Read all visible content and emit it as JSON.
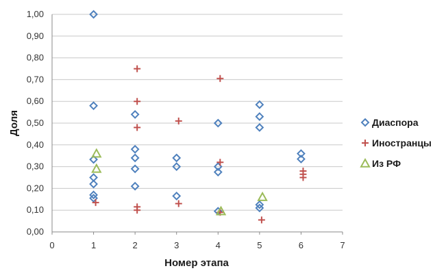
{
  "chart_data": {
    "type": "scatter",
    "title": "",
    "xlabel": "Номер этапа",
    "ylabel": "Доля",
    "xlim": [
      0,
      7
    ],
    "ylim": [
      0,
      1
    ],
    "grid": "horizontal",
    "legend_position": "right",
    "x_ticks": [
      "0",
      "1",
      "2",
      "3",
      "4",
      "5",
      "6",
      "7"
    ],
    "y_ticks": [
      "0,00",
      "0,10",
      "0,20",
      "0,30",
      "0,40",
      "0,50",
      "0,60",
      "0,70",
      "0,80",
      "0,90",
      "1,00"
    ],
    "series": [
      {
        "name": "Диаспора",
        "marker": "diamond",
        "color": "#4F81BD",
        "points": [
          [
            1,
            1.0
          ],
          [
            1,
            0.58
          ],
          [
            1,
            0.333
          ],
          [
            1,
            0.25
          ],
          [
            1,
            0.22
          ],
          [
            1,
            0.17
          ],
          [
            1,
            0.155
          ],
          [
            2,
            0.54
          ],
          [
            2,
            0.38
          ],
          [
            2,
            0.34
          ],
          [
            2,
            0.29
          ],
          [
            2,
            0.21
          ],
          [
            3,
            0.34
          ],
          [
            3,
            0.3
          ],
          [
            3,
            0.165
          ],
          [
            4,
            0.5
          ],
          [
            4,
            0.3
          ],
          [
            4,
            0.275
          ],
          [
            4,
            0.095
          ],
          [
            5,
            0.585
          ],
          [
            5,
            0.53
          ],
          [
            5,
            0.48
          ],
          [
            5,
            0.125
          ],
          [
            5,
            0.11
          ],
          [
            6,
            0.36
          ],
          [
            6,
            0.335
          ]
        ]
      },
      {
        "name": "Иностранцы",
        "marker": "plus",
        "color": "#C0504D",
        "points": [
          [
            1.05,
            0.135
          ],
          [
            2.05,
            0.75
          ],
          [
            2.05,
            0.6
          ],
          [
            2.05,
            0.48
          ],
          [
            2.05,
            0.115
          ],
          [
            2.05,
            0.1
          ],
          [
            3.05,
            0.51
          ],
          [
            3.05,
            0.13
          ],
          [
            4.05,
            0.705
          ],
          [
            4.05,
            0.32
          ],
          [
            4.05,
            0.09
          ],
          [
            5.05,
            0.055
          ],
          [
            6.05,
            0.28
          ],
          [
            6.05,
            0.265
          ],
          [
            6.05,
            0.25
          ]
        ]
      },
      {
        "name": "Из РФ",
        "marker": "triangle",
        "color": "#9BBB59",
        "points": [
          [
            1.07,
            0.36
          ],
          [
            1.07,
            0.29
          ],
          [
            4.07,
            0.095
          ],
          [
            5.07,
            0.16
          ]
        ]
      }
    ]
  }
}
